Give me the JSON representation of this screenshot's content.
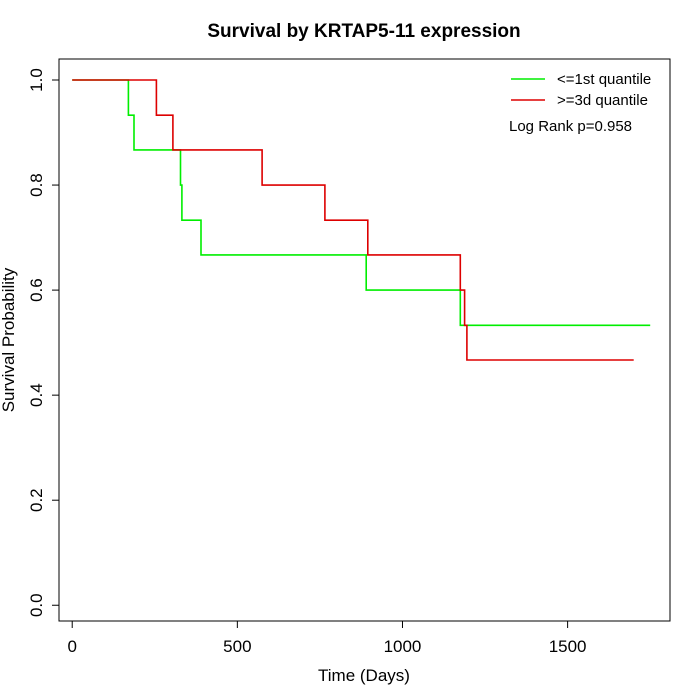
{
  "chart_data": {
    "type": "line",
    "subtype": "kaplan-meier-step",
    "title": "Survival by KRTAP5-11 expression",
    "xlabel": "Time (Days)",
    "ylabel": "Survival Probability",
    "xlim": [
      -40,
      1810
    ],
    "ylim": [
      -0.03,
      1.04
    ],
    "xticks": [
      0,
      500,
      1000,
      1500
    ],
    "yticks": [
      0.0,
      0.2,
      0.4,
      0.6,
      0.8,
      1.0
    ],
    "xtick_labels": [
      "0",
      "500",
      "1000",
      "1500"
    ],
    "ytick_labels": [
      "0.0",
      "0.2",
      "0.4",
      "0.6",
      "0.8",
      "1.0"
    ],
    "legend_position": "top-right",
    "annotation": "Log Rank p=0.958",
    "series": [
      {
        "name": "<=1st quantile",
        "color": "#00ee00",
        "points": [
          [
            0,
            1.0
          ],
          [
            170,
            1.0
          ],
          [
            170,
            0.933
          ],
          [
            187,
            0.933
          ],
          [
            187,
            0.867
          ],
          [
            328,
            0.867
          ],
          [
            328,
            0.8
          ],
          [
            332,
            0.8
          ],
          [
            332,
            0.733
          ],
          [
            390,
            0.733
          ],
          [
            390,
            0.667
          ],
          [
            890,
            0.667
          ],
          [
            890,
            0.6
          ],
          [
            1175,
            0.6
          ],
          [
            1175,
            0.533
          ],
          [
            1750,
            0.533
          ]
        ]
      },
      {
        "name": ">=3d quantile",
        "color": "#dd0000",
        "points": [
          [
            0,
            1.0
          ],
          [
            255,
            1.0
          ],
          [
            255,
            0.933
          ],
          [
            305,
            0.933
          ],
          [
            305,
            0.867
          ],
          [
            575,
            0.867
          ],
          [
            575,
            0.8
          ],
          [
            765,
            0.8
          ],
          [
            765,
            0.733
          ],
          [
            895,
            0.733
          ],
          [
            895,
            0.667
          ],
          [
            1175,
            0.667
          ],
          [
            1175,
            0.6
          ],
          [
            1188,
            0.6
          ],
          [
            1188,
            0.533
          ],
          [
            1195,
            0.533
          ],
          [
            1195,
            0.467
          ],
          [
            1700,
            0.467
          ]
        ]
      }
    ]
  }
}
